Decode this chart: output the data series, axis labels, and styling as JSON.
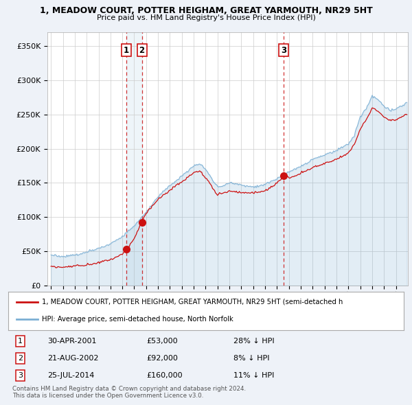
{
  "title": "1, MEADOW COURT, POTTER HEIGHAM, GREAT YARMOUTH, NR29 5HT",
  "subtitle": "Price paid vs. HM Land Registry's House Price Index (HPI)",
  "bg_color": "#eef2f8",
  "plot_bg_color": "#ffffff",
  "legend_line1": "1, MEADOW COURT, POTTER HEIGHAM, GREAT YARMOUTH, NR29 5HT (semi-detached h",
  "legend_line2": "HPI: Average price, semi-detached house, North Norfolk",
  "footer1": "Contains HM Land Registry data © Crown copyright and database right 2024.",
  "footer2": "This data is licensed under the Open Government Licence v3.0.",
  "transactions": [
    {
      "num": 1,
      "date": "30-APR-2001",
      "price": 53000,
      "hpi_diff": "28% ↓ HPI",
      "year": 2001.33
    },
    {
      "num": 2,
      "date": "21-AUG-2002",
      "price": 92000,
      "hpi_diff": "8% ↓ HPI",
      "year": 2002.64
    },
    {
      "num": 3,
      "date": "25-JUL-2014",
      "price": 160000,
      "hpi_diff": "11% ↓ HPI",
      "year": 2014.56
    }
  ],
  "hpi_color": "#7bafd4",
  "price_color": "#cc1111",
  "dashed_line_color": "#cc1111",
  "grid_color": "#cccccc",
  "ylim": [
    0,
    370000
  ],
  "yticks": [
    0,
    50000,
    100000,
    150000,
    200000,
    250000,
    300000,
    350000
  ],
  "xlim_start": 1994.7,
  "xlim_end": 2025.0
}
